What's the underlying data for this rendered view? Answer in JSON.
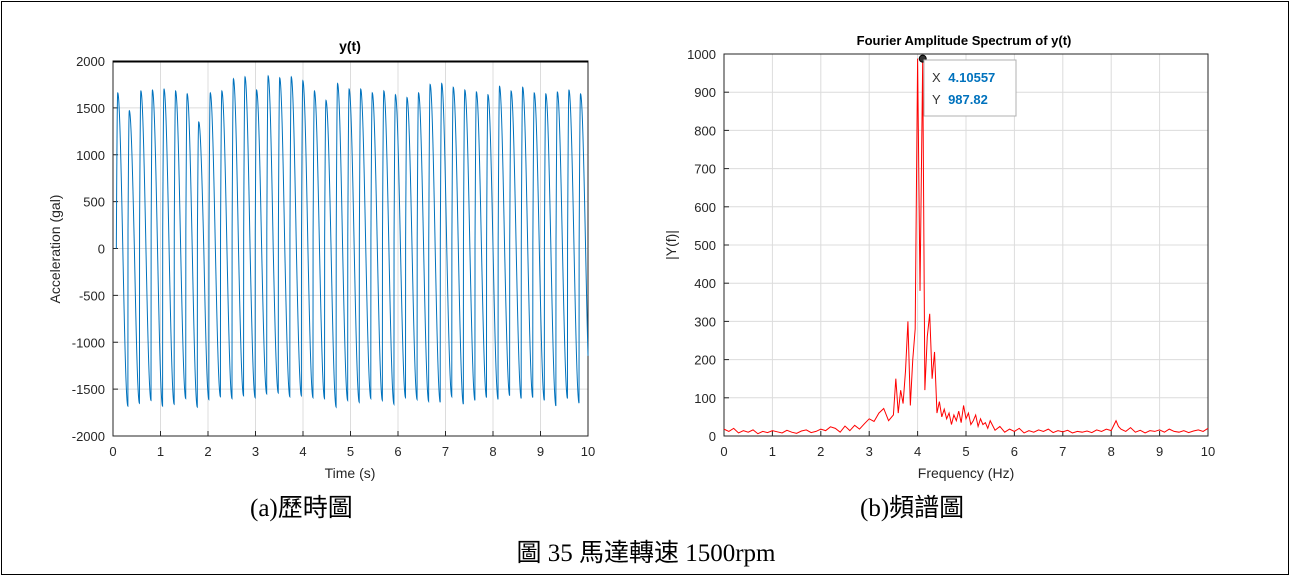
{
  "figure_caption": "圖 35 馬達轉速 1500rpm",
  "panels": {
    "a": {
      "caption": "(a)歷時圖"
    },
    "b": {
      "caption": "(b)頻譜圖"
    }
  },
  "colors": {
    "time_series": "#0072BD",
    "spectrum": "#FF0000",
    "grid": "#dcdcdc",
    "axis": "#262626",
    "datatip_value": "#0072BD"
  },
  "chart_data": [
    {
      "type": "line",
      "title": "y(t)",
      "xlabel": "Time (s)",
      "ylabel": "Acceleration (gal)",
      "xlim": [
        0,
        10
      ],
      "ylim": [
        -2000,
        2000
      ],
      "xticks": [
        "0",
        "1",
        "2",
        "3",
        "4",
        "5",
        "6",
        "7",
        "8",
        "9",
        "10"
      ],
      "yticks": [
        "-2000",
        "-1500",
        "-1000",
        "-500",
        "0",
        "500",
        "1000",
        "1500",
        "2000"
      ],
      "grid": true,
      "series": [
        {
          "dominant_frequency_hz": 4.10557,
          "start_time": 0.07,
          "end_time": 10,
          "cycle_peaks": [
            1660,
            1470,
            1680,
            1690,
            1700,
            1680,
            1650,
            1350,
            1660,
            1680,
            1810,
            1830,
            1690,
            1840,
            1820,
            1830,
            1790,
            1680,
            1580,
            1760,
            1700,
            1700,
            1660,
            1680,
            1640,
            1610,
            1660,
            1750,
            1760,
            1720,
            1690,
            1670,
            1640,
            1730,
            1680,
            1720,
            1660,
            1650,
            1670,
            1690,
            1650
          ],
          "cycle_troughs": [
            -1680,
            -1650,
            -1620,
            -1680,
            -1660,
            -1600,
            -1690,
            -1610,
            -1580,
            -1600,
            -1570,
            -1590,
            -1550,
            -1540,
            -1580,
            -1570,
            -1590,
            -1600,
            -1690,
            -1620,
            -1640,
            -1600,
            -1620,
            -1660,
            -1590,
            -1610,
            -1630,
            -1640,
            -1580,
            -1660,
            -1620,
            -1590,
            -1610,
            -1570,
            -1600,
            -1590,
            -1620,
            -1680,
            -1600,
            -1650,
            -1690
          ]
        }
      ]
    },
    {
      "type": "line",
      "title": "Fourier Amplitude Spectrum of y(t)",
      "xlabel": "Frequency (Hz)",
      "ylabel": "|Y(f)|",
      "xlim": [
        0,
        10
      ],
      "ylim": [
        0,
        1000
      ],
      "xticks": [
        "0",
        "1",
        "2",
        "3",
        "4",
        "5",
        "6",
        "7",
        "8",
        "9",
        "10"
      ],
      "yticks": [
        "0",
        "100",
        "200",
        "300",
        "400",
        "500",
        "600",
        "700",
        "800",
        "900",
        "1000"
      ],
      "grid": true,
      "series": [
        {
          "x": [
            0,
            0.1,
            0.2,
            0.3,
            0.4,
            0.5,
            0.6,
            0.7,
            0.8,
            0.9,
            1.0,
            1.1,
            1.2,
            1.3,
            1.4,
            1.5,
            1.6,
            1.7,
            1.8,
            1.9,
            2.0,
            2.1,
            2.2,
            2.3,
            2.4,
            2.5,
            2.6,
            2.7,
            2.8,
            2.9,
            3.0,
            3.1,
            3.2,
            3.3,
            3.4,
            3.5,
            3.55,
            3.6,
            3.65,
            3.7,
            3.75,
            3.8,
            3.85,
            3.9,
            3.95,
            4.0,
            4.05,
            4.10557,
            4.15,
            4.2,
            4.25,
            4.3,
            4.35,
            4.4,
            4.45,
            4.5,
            4.55,
            4.6,
            4.65,
            4.7,
            4.75,
            4.8,
            4.85,
            4.9,
            4.95,
            5.0,
            5.05,
            5.1,
            5.15,
            5.2,
            5.25,
            5.3,
            5.35,
            5.4,
            5.45,
            5.5,
            5.6,
            5.7,
            5.8,
            5.9,
            6.0,
            6.1,
            6.2,
            6.3,
            6.4,
            6.5,
            6.6,
            6.7,
            6.8,
            6.9,
            7.0,
            7.1,
            7.2,
            7.3,
            7.4,
            7.5,
            7.6,
            7.7,
            7.8,
            7.9,
            8.0,
            8.1,
            8.15,
            8.2,
            8.3,
            8.4,
            8.5,
            8.6,
            8.7,
            8.8,
            8.9,
            9.0,
            9.1,
            9.2,
            9.3,
            9.4,
            9.5,
            9.6,
            9.7,
            9.8,
            9.9,
            10.0
          ],
          "y": [
            18,
            12,
            20,
            8,
            14,
            10,
            16,
            6,
            12,
            9,
            14,
            11,
            8,
            15,
            10,
            7,
            13,
            16,
            9,
            12,
            18,
            14,
            24,
            20,
            10,
            26,
            14,
            28,
            18,
            32,
            45,
            38,
            60,
            72,
            40,
            55,
            150,
            60,
            120,
            85,
            170,
            300,
            80,
            200,
            280,
            987.82,
            380,
            987.82,
            120,
            260,
            320,
            150,
            220,
            60,
            90,
            50,
            70,
            45,
            60,
            30,
            55,
            40,
            65,
            35,
            80,
            45,
            60,
            30,
            40,
            55,
            25,
            45,
            30,
            35,
            20,
            40,
            15,
            25,
            10,
            18,
            12,
            20,
            8,
            14,
            10,
            16,
            12,
            18,
            9,
            14,
            11,
            15,
            8,
            12,
            10,
            13,
            9,
            16,
            12,
            18,
            14,
            40,
            25,
            18,
            12,
            22,
            10,
            15,
            8,
            14,
            12,
            16,
            10,
            18,
            12,
            10,
            14,
            9,
            13,
            16,
            12,
            20
          ]
        }
      ],
      "datatip": {
        "x_label": "X",
        "y_label": "Y",
        "x_value": "4.10557",
        "y_value": "987.82",
        "x": 4.10557,
        "y": 987.82
      }
    }
  ]
}
